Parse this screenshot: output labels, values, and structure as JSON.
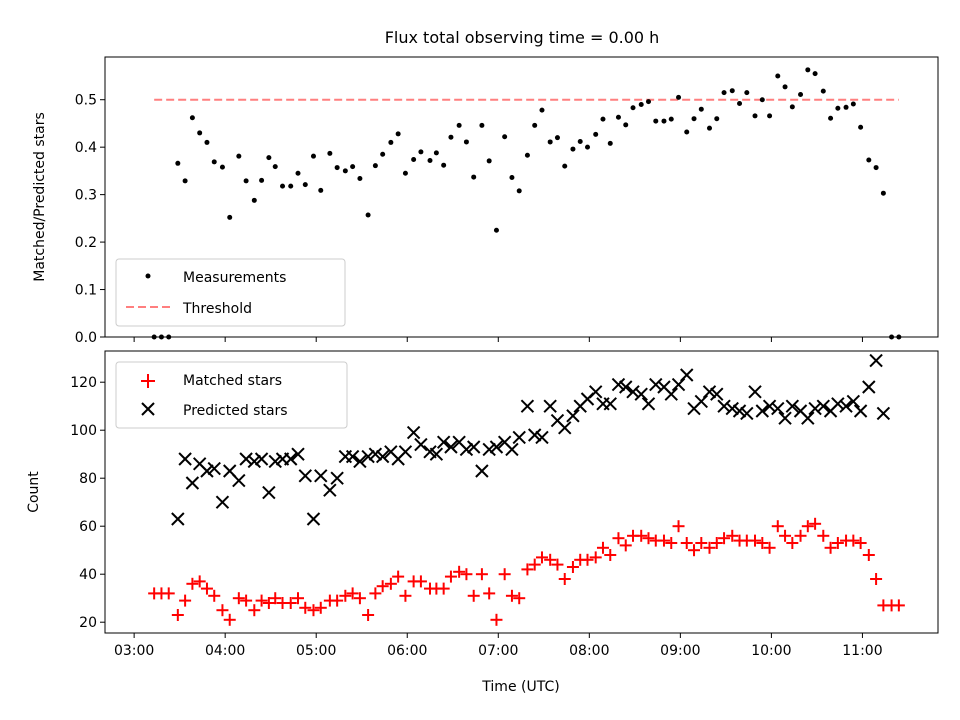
{
  "title": "Flux total observing time = 0.00 h",
  "x_axis": {
    "label": "Time (UTC)",
    "ticks": [
      {
        "t": 3.0,
        "label": "03:00"
      },
      {
        "t": 4.0,
        "label": "04:00"
      },
      {
        "t": 5.0,
        "label": "05:00"
      },
      {
        "t": 6.0,
        "label": "06:00"
      },
      {
        "t": 7.0,
        "label": "07:00"
      },
      {
        "t": 8.0,
        "label": "08:00"
      },
      {
        "t": 9.0,
        "label": "09:00"
      },
      {
        "t": 10.0,
        "label": "10:00"
      },
      {
        "t": 11.0,
        "label": "11:00"
      }
    ],
    "range_hours": [
      2.68,
      11.83
    ]
  },
  "chart_data": [
    {
      "type": "scatter",
      "ylabel": "Matched/Predicted stars",
      "ylim": [
        0,
        0.59
      ],
      "yticks": [
        {
          "v": 0.0,
          "label": "0.0"
        },
        {
          "v": 0.1,
          "label": "0.1"
        },
        {
          "v": 0.2,
          "label": "0.2"
        },
        {
          "v": 0.3,
          "label": "0.3"
        },
        {
          "v": 0.4,
          "label": "0.4"
        },
        {
          "v": 0.5,
          "label": "0.5"
        }
      ],
      "legend_position": "lower-left",
      "series": [
        {
          "name": "Measurements",
          "marker": "dot",
          "color": "#000000",
          "x": [
            3.22,
            3.3,
            3.38,
            3.48,
            3.56,
            3.64,
            3.72,
            3.8,
            3.88,
            3.97,
            4.05,
            4.15,
            4.23,
            4.32,
            4.4,
            4.48,
            4.55,
            4.63,
            4.72,
            4.8,
            4.88,
            4.97,
            5.05,
            5.15,
            5.23,
            5.32,
            5.4,
            5.48,
            5.57,
            5.65,
            5.73,
            5.82,
            5.9,
            5.98,
            6.07,
            6.15,
            6.25,
            6.32,
            6.4,
            6.48,
            6.57,
            6.65,
            6.73,
            6.82,
            6.9,
            6.98,
            7.07,
            7.15,
            7.23,
            7.32,
            7.4,
            7.48,
            7.57,
            7.65,
            7.73,
            7.82,
            7.9,
            7.98,
            8.07,
            8.15,
            8.23,
            8.32,
            8.4,
            8.48,
            8.57,
            8.65,
            8.73,
            8.82,
            8.9,
            8.98,
            9.07,
            9.15,
            9.23,
            9.32,
            9.4,
            9.48,
            9.57,
            9.65,
            9.73,
            9.82,
            9.9,
            9.98,
            10.07,
            10.15,
            10.23,
            10.32,
            10.4,
            10.48,
            10.57,
            10.65,
            10.73,
            10.82,
            10.9,
            10.98,
            11.07,
            11.15,
            11.23,
            11.32,
            11.4
          ],
          "y": [
            0.0,
            0.0,
            0.0,
            0.366,
            0.329,
            0.462,
            0.43,
            0.41,
            0.369,
            0.358,
            0.252,
            0.381,
            0.329,
            0.288,
            0.33,
            0.378,
            0.359,
            0.318,
            0.318,
            0.345,
            0.321,
            0.381,
            0.309,
            0.387,
            0.357,
            0.35,
            0.359,
            0.334,
            0.257,
            0.361,
            0.385,
            0.41,
            0.428,
            0.345,
            0.374,
            0.39,
            0.372,
            0.388,
            0.362,
            0.421,
            0.446,
            0.411,
            0.337,
            0.446,
            0.371,
            0.225,
            0.422,
            0.336,
            0.308,
            0.383,
            0.446,
            0.478,
            0.411,
            0.42,
            0.36,
            0.396,
            0.412,
            0.4,
            0.427,
            0.459,
            0.408,
            0.463,
            0.447,
            0.483,
            0.49,
            0.496,
            0.455,
            0.455,
            0.459,
            0.505,
            0.432,
            0.46,
            0.48,
            0.44,
            0.46,
            0.515,
            0.519,
            0.492,
            0.515,
            0.466,
            0.5,
            0.466,
            0.55,
            0.527,
            0.485,
            0.511,
            0.563,
            0.555,
            0.518,
            0.461,
            0.482,
            0.484,
            0.491,
            0.442,
            0.373,
            0.357,
            0.303,
            0.0,
            0.0
          ]
        },
        {
          "name": "Threshold",
          "marker": "dashed-line",
          "color": "#ff7f7f",
          "x": [
            3.22,
            11.4
          ],
          "y": [
            0.5,
            0.5
          ]
        }
      ]
    },
    {
      "type": "scatter",
      "ylabel": "Count",
      "ylim": [
        15.5,
        133
      ],
      "yticks": [
        {
          "v": 20,
          "label": "20"
        },
        {
          "v": 40,
          "label": "40"
        },
        {
          "v": 60,
          "label": "60"
        },
        {
          "v": 80,
          "label": "80"
        },
        {
          "v": 100,
          "label": "100"
        },
        {
          "v": 120,
          "label": "120"
        }
      ],
      "legend_position": "upper-left",
      "series": [
        {
          "name": "Matched stars",
          "marker": "plus",
          "color": "#ff0000",
          "x": [
            3.22,
            3.3,
            3.38,
            3.48,
            3.56,
            3.64,
            3.72,
            3.8,
            3.88,
            3.97,
            4.05,
            4.15,
            4.23,
            4.32,
            4.4,
            4.48,
            4.55,
            4.63,
            4.72,
            4.8,
            4.88,
            4.97,
            5.05,
            5.15,
            5.23,
            5.32,
            5.4,
            5.48,
            5.57,
            5.65,
            5.73,
            5.82,
            5.9,
            5.98,
            6.07,
            6.15,
            6.25,
            6.32,
            6.4,
            6.48,
            6.57,
            6.65,
            6.73,
            6.82,
            6.9,
            6.98,
            7.07,
            7.15,
            7.23,
            7.32,
            7.4,
            7.48,
            7.57,
            7.65,
            7.73,
            7.82,
            7.9,
            7.98,
            8.07,
            8.15,
            8.23,
            8.32,
            8.4,
            8.48,
            8.57,
            8.65,
            8.73,
            8.82,
            8.9,
            8.98,
            9.07,
            9.15,
            9.23,
            9.32,
            9.4,
            9.48,
            9.57,
            9.65,
            9.73,
            9.82,
            9.9,
            9.98,
            10.07,
            10.15,
            10.23,
            10.32,
            10.4,
            10.48,
            10.57,
            10.65,
            10.73,
            10.82,
            10.9,
            10.98,
            11.07,
            11.15,
            11.23,
            11.32,
            11.4
          ],
          "y": [
            32,
            32,
            32,
            23,
            29,
            36,
            37,
            34,
            31,
            25,
            21,
            30,
            29,
            25,
            29,
            28,
            30,
            28,
            28,
            30,
            26,
            25,
            26,
            29,
            29,
            31,
            32,
            30,
            23,
            32,
            35,
            36,
            39,
            31,
            37,
            37,
            34,
            34,
            34,
            39,
            41,
            40,
            31,
            40,
            32,
            21,
            40,
            31,
            30,
            42,
            44,
            47,
            46,
            44,
            38,
            43,
            46,
            46,
            47,
            51,
            48,
            55,
            52,
            56,
            56,
            55,
            54,
            54,
            53,
            60,
            53,
            50,
            53,
            51,
            53,
            55,
            56,
            54,
            54,
            54,
            53,
            51,
            60,
            56,
            53,
            56,
            60,
            61,
            56,
            51,
            53,
            54,
            54,
            53,
            48,
            38,
            27,
            27,
            27
          ]
        },
        {
          "name": "Predicted stars",
          "marker": "x",
          "color": "#000000",
          "x": [
            3.48,
            3.56,
            3.64,
            3.72,
            3.8,
            3.88,
            3.97,
            4.05,
            4.15,
            4.23,
            4.32,
            4.4,
            4.48,
            4.55,
            4.63,
            4.72,
            4.8,
            4.88,
            4.97,
            5.05,
            5.15,
            5.23,
            5.32,
            5.4,
            5.48,
            5.57,
            5.65,
            5.73,
            5.82,
            5.9,
            5.98,
            6.07,
            6.15,
            6.25,
            6.32,
            6.4,
            6.48,
            6.57,
            6.65,
            6.73,
            6.82,
            6.9,
            6.98,
            7.07,
            7.15,
            7.23,
            7.32,
            7.4,
            7.48,
            7.57,
            7.65,
            7.73,
            7.82,
            7.9,
            7.98,
            8.07,
            8.15,
            8.23,
            8.32,
            8.4,
            8.48,
            8.57,
            8.65,
            8.73,
            8.82,
            8.9,
            8.98,
            9.07,
            9.15,
            9.23,
            9.32,
            9.4,
            9.48,
            9.57,
            9.65,
            9.73,
            9.82,
            9.9,
            9.98,
            10.07,
            10.15,
            10.23,
            10.32,
            10.4,
            10.48,
            10.57,
            10.65,
            10.73,
            10.82,
            10.9,
            10.98,
            11.07,
            11.15,
            11.23
          ],
          "y": [
            63,
            88,
            78,
            86,
            83,
            84,
            70,
            83,
            79,
            88,
            87,
            88,
            74,
            87,
            88,
            88,
            90,
            81,
            63,
            81,
            75,
            80,
            89,
            89,
            87,
            89,
            90,
            89,
            91,
            88,
            91,
            99,
            94,
            91,
            90,
            95,
            93,
            95,
            92,
            93,
            83,
            92,
            93,
            95,
            92,
            97,
            110,
            98,
            97,
            110,
            104,
            101,
            106,
            110,
            113,
            116,
            111,
            111,
            119,
            118,
            116,
            115,
            111,
            119,
            118,
            115,
            119,
            123,
            109,
            112,
            116,
            115,
            110,
            109,
            108,
            107,
            116,
            108,
            110,
            109,
            105,
            110,
            108,
            105,
            109,
            110,
            108,
            111,
            110,
            112,
            108,
            118,
            129,
            107
          ]
        }
      ]
    }
  ]
}
